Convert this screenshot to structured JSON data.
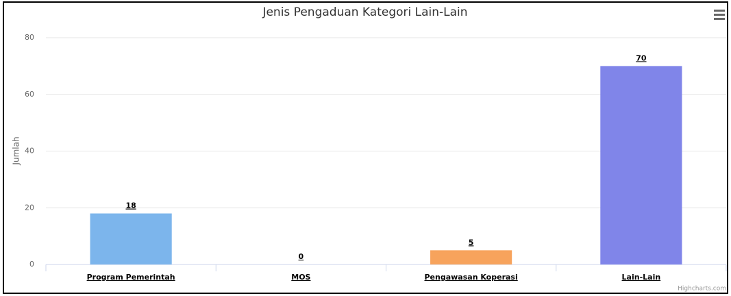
{
  "chart_data": {
    "type": "bar",
    "title": "Jenis Pengaduan Kategori Lain-Lain",
    "categories": [
      "Program Pemerintah",
      "MOS",
      "Pengawasan Koperasi",
      "Lain-Lain"
    ],
    "values": [
      18,
      0,
      5,
      70
    ],
    "colors": [
      "#7cb5ec",
      "#434348",
      "#f7a35c",
      "#8085e9"
    ],
    "ylabel": "Jumlah",
    "ylim": [
      0,
      80
    ],
    "yticks": [
      0,
      20,
      40,
      60,
      80
    ],
    "grid": true,
    "credits": "Highcharts.com"
  }
}
